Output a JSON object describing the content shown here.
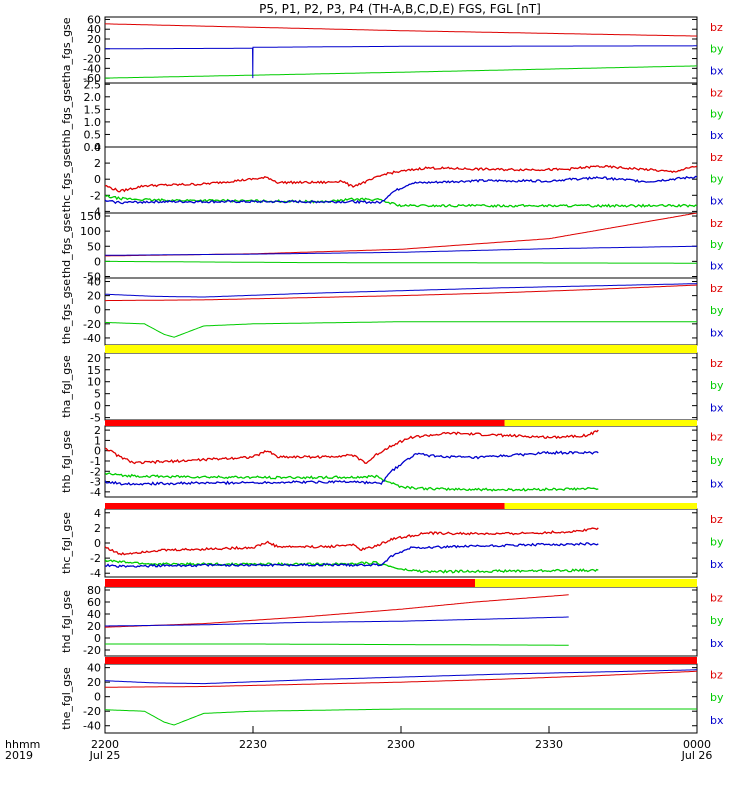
{
  "title": "P5, P1, P2, P3, P4 (TH-A,B,C,D,E) FGS, FGL [nT]",
  "time_axis": {
    "label_row1": "hhmm",
    "label_row2": "2019",
    "ticks": [
      {
        "t": 0,
        "top": "2200",
        "bottom": "Jul 25"
      },
      {
        "t": 30,
        "top": "2230",
        "bottom": ""
      },
      {
        "t": 60,
        "top": "2300",
        "bottom": ""
      },
      {
        "t": 90,
        "top": "2330",
        "bottom": ""
      },
      {
        "t": 120,
        "top": "0000",
        "bottom": "Jul 26"
      }
    ],
    "range_minutes": [
      0,
      120
    ]
  },
  "legend": {
    "bz": {
      "label": "bz",
      "color": "#dd0000"
    },
    "by": {
      "label": "by",
      "color": "#00cc00"
    },
    "bx": {
      "label": "bx",
      "color": "#0000cc"
    }
  },
  "chart_data": [
    {
      "type": "line",
      "ylabel": "tha_fgs_gse",
      "yticks": [
        "60",
        "40",
        "20",
        "0",
        "-20",
        "-40",
        "-60"
      ],
      "ylim": [
        -70,
        65
      ],
      "series": [
        {
          "name": "bz",
          "points": [
            [
              0,
              51
            ],
            [
              60,
              37
            ],
            [
              120,
              26
            ]
          ]
        },
        {
          "name": "by",
          "points": [
            [
              0,
              -60
            ],
            [
              60,
              -48
            ],
            [
              120,
              -35
            ]
          ]
        },
        {
          "name": "bx",
          "points": [
            [
              0,
              0
            ],
            [
              29.9,
              1
            ],
            [
              29.95,
              -60
            ],
            [
              30,
              3
            ],
            [
              60,
              5
            ],
            [
              120,
              6
            ]
          ]
        }
      ]
    },
    {
      "type": "line",
      "ylabel": "thb_fgs_gse",
      "yticks": [
        "2.5",
        "2.0",
        "1.5",
        "1.0",
        "0.5",
        "0.0"
      ],
      "ylim": [
        0,
        2.55
      ],
      "series": []
    },
    {
      "type": "line",
      "ylabel": "thc_fgs_gse",
      "yticks": [
        "4",
        "2",
        "0",
        "-2",
        "-4"
      ],
      "ylim": [
        -4.2,
        4
      ],
      "series": [
        {
          "name": "bz",
          "points": [
            [
              0,
              -0.8
            ],
            [
              3,
              -1.5
            ],
            [
              8,
              -0.8
            ],
            [
              20,
              -0.6
            ],
            [
              33,
              0.2
            ],
            [
              35,
              -0.4
            ],
            [
              45,
              -0.4
            ],
            [
              48,
              -0.2
            ],
            [
              50,
              -0.9
            ],
            [
              53,
              -0.3
            ],
            [
              57,
              0.7
            ],
            [
              65,
              1.4
            ],
            [
              80,
              1.2
            ],
            [
              93,
              1.2
            ],
            [
              100,
              1.6
            ],
            [
              110,
              1.2
            ],
            [
              115,
              0.9
            ],
            [
              120,
              1.6
            ]
          ]
        },
        {
          "name": "by",
          "points": [
            [
              0,
              -2.1
            ],
            [
              3,
              -2.4
            ],
            [
              10,
              -2.6
            ],
            [
              30,
              -2.7
            ],
            [
              45,
              -2.8
            ],
            [
              50,
              -2.5
            ],
            [
              55,
              -2.5
            ],
            [
              60,
              -3.3
            ],
            [
              65,
              -3.3
            ],
            [
              120,
              -3.3
            ]
          ]
        },
        {
          "name": "bx",
          "points": [
            [
              0,
              -2.7
            ],
            [
              3,
              -2.9
            ],
            [
              10,
              -2.8
            ],
            [
              30,
              -2.8
            ],
            [
              45,
              -2.8
            ],
            [
              50,
              -2.8
            ],
            [
              56,
              -2.9
            ],
            [
              58,
              -1.7
            ],
            [
              62,
              -0.5
            ],
            [
              75,
              -0.2
            ],
            [
              90,
              -0.2
            ],
            [
              100,
              0.2
            ],
            [
              110,
              -0.3
            ],
            [
              120,
              0.3
            ]
          ]
        }
      ]
    },
    {
      "type": "line",
      "ylabel": "thd_fgs_gse",
      "yticks": [
        "150",
        "100",
        "50",
        "0",
        "-50"
      ],
      "ylim": [
        -55,
        160
      ],
      "series": [
        {
          "name": "bz",
          "points": [
            [
              0,
              18
            ],
            [
              30,
              25
            ],
            [
              60,
              40
            ],
            [
              90,
              75
            ],
            [
              120,
              160
            ]
          ]
        },
        {
          "name": "by",
          "points": [
            [
              0,
              0
            ],
            [
              20,
              -2
            ],
            [
              40,
              -4
            ],
            [
              120,
              -6
            ]
          ]
        },
        {
          "name": "bx",
          "points": [
            [
              0,
              20
            ],
            [
              30,
              24
            ],
            [
              60,
              30
            ],
            [
              90,
              42
            ],
            [
              120,
              50
            ]
          ]
        }
      ]
    },
    {
      "type": "line",
      "ylabel": "the_fgs_gse",
      "yticks": [
        "40",
        "20",
        "0",
        "-20",
        "-40"
      ],
      "ylim": [
        -50,
        45
      ],
      "series": [
        {
          "name": "bz",
          "points": [
            [
              0,
              13
            ],
            [
              20,
              14
            ],
            [
              40,
              17
            ],
            [
              60,
              20
            ],
            [
              80,
              24
            ],
            [
              100,
              29
            ],
            [
              120,
              35
            ]
          ]
        },
        {
          "name": "by",
          "points": [
            [
              0,
              -18
            ],
            [
              8,
              -20
            ],
            [
              12,
              -35
            ],
            [
              14,
              -39
            ],
            [
              20,
              -23
            ],
            [
              30,
              -20
            ],
            [
              60,
              -17
            ],
            [
              120,
              -17
            ]
          ]
        },
        {
          "name": "bx",
          "points": [
            [
              0,
              22
            ],
            [
              10,
              19
            ],
            [
              20,
              18
            ],
            [
              40,
              23
            ],
            [
              60,
              27
            ],
            [
              80,
              31
            ],
            [
              100,
              34
            ],
            [
              120,
              37
            ]
          ]
        }
      ]
    },
    {
      "type": "line",
      "ylabel": "tha_fgl_gse",
      "yticks": [
        "20",
        "15",
        "10",
        "5",
        "0",
        "-5"
      ],
      "ylim": [
        -6,
        22
      ],
      "series": []
    },
    {
      "type": "line",
      "ylabel": "thb_fgl_gse",
      "yticks": [
        "2",
        "1",
        "0",
        "-1",
        "-2",
        "-3",
        "-4"
      ],
      "ylim": [
        -4.5,
        2.4
      ],
      "series": [
        {
          "name": "bz",
          "points": [
            [
              0,
              0.3
            ],
            [
              3,
              -0.6
            ],
            [
              6,
              -1.2
            ],
            [
              15,
              -1.0
            ],
            [
              30,
              -0.6
            ],
            [
              33,
              0.0
            ],
            [
              35,
              -0.6
            ],
            [
              45,
              -0.6
            ],
            [
              50,
              -0.4
            ],
            [
              53,
              -1.2
            ],
            [
              55,
              -0.4
            ],
            [
              58,
              0.5
            ],
            [
              62,
              1.3
            ],
            [
              70,
              1.7
            ],
            [
              80,
              1.5
            ],
            [
              90,
              1.3
            ],
            [
              98,
              1.5
            ],
            [
              100,
              2.0
            ]
          ]
        },
        {
          "name": "by",
          "points": [
            [
              0,
              -2.2
            ],
            [
              3,
              -2.4
            ],
            [
              10,
              -2.5
            ],
            [
              30,
              -2.6
            ],
            [
              50,
              -2.6
            ],
            [
              55,
              -2.5
            ],
            [
              60,
              -3.5
            ],
            [
              65,
              -3.7
            ],
            [
              80,
              -3.8
            ],
            [
              100,
              -3.7
            ]
          ]
        },
        {
          "name": "bx",
          "points": [
            [
              0,
              -3.0
            ],
            [
              3,
              -3.2
            ],
            [
              10,
              -3.2
            ],
            [
              30,
              -3.1
            ],
            [
              50,
              -3.0
            ],
            [
              56,
              -3.2
            ],
            [
              58,
              -2.0
            ],
            [
              63,
              -0.3
            ],
            [
              66,
              -0.5
            ],
            [
              75,
              -0.7
            ],
            [
              90,
              -0.2
            ],
            [
              100,
              -0.2
            ]
          ]
        }
      ]
    },
    {
      "type": "line",
      "ylabel": "thc_fgl_gse",
      "yticks": [
        "4",
        "2",
        "0",
        "-2",
        "-4"
      ],
      "ylim": [
        -4.5,
        4.5
      ],
      "series": [
        {
          "name": "bz",
          "points": [
            [
              0,
              -0.5
            ],
            [
              3,
              -1.5
            ],
            [
              10,
              -1.0
            ],
            [
              30,
              -0.6
            ],
            [
              33,
              0.1
            ],
            [
              35,
              -0.5
            ],
            [
              45,
              -0.5
            ],
            [
              50,
              -0.2
            ],
            [
              52,
              -0.9
            ],
            [
              55,
              -0.4
            ],
            [
              58,
              0.5
            ],
            [
              65,
              1.3
            ],
            [
              80,
              1.2
            ],
            [
              95,
              1.5
            ],
            [
              100,
              2.0
            ]
          ]
        },
        {
          "name": "by",
          "points": [
            [
              0,
              -2.3
            ],
            [
              3,
              -2.5
            ],
            [
              10,
              -2.8
            ],
            [
              30,
              -2.8
            ],
            [
              45,
              -2.8
            ],
            [
              55,
              -2.6
            ],
            [
              60,
              -3.5
            ],
            [
              65,
              -3.8
            ],
            [
              100,
              -3.6
            ]
          ]
        },
        {
          "name": "bx",
          "points": [
            [
              0,
              -2.9
            ],
            [
              3,
              -3.1
            ],
            [
              10,
              -3.0
            ],
            [
              30,
              -2.9
            ],
            [
              45,
              -2.9
            ],
            [
              56,
              -2.9
            ],
            [
              58,
              -1.8
            ],
            [
              62,
              -0.6
            ],
            [
              70,
              -0.5
            ],
            [
              90,
              -0.2
            ],
            [
              100,
              -0.1
            ]
          ]
        }
      ]
    },
    {
      "type": "line",
      "ylabel": "thd_fgl_gse",
      "yticks": [
        "80",
        "60",
        "40",
        "20",
        "0",
        "-20"
      ],
      "ylim": [
        -30,
        85
      ],
      "series": [
        {
          "name": "bz",
          "points": [
            [
              0,
              18
            ],
            [
              20,
              24
            ],
            [
              40,
              35
            ],
            [
              60,
              48
            ],
            [
              75,
              60
            ],
            [
              94,
              72
            ]
          ]
        },
        {
          "name": "by",
          "points": [
            [
              0,
              -10
            ],
            [
              30,
              -10
            ],
            [
              60,
              -11
            ],
            [
              94,
              -12
            ]
          ]
        },
        {
          "name": "bx",
          "points": [
            [
              0,
              20
            ],
            [
              20,
              22
            ],
            [
              40,
              26
            ],
            [
              60,
              28
            ],
            [
              80,
              32
            ],
            [
              94,
              35
            ]
          ]
        }
      ]
    },
    {
      "type": "line",
      "ylabel": "the_fgl_gse",
      "yticks": [
        "40",
        "20",
        "0",
        "-20",
        "-40"
      ],
      "ylim": [
        -50,
        45
      ],
      "series": [
        {
          "name": "bz",
          "points": [
            [
              0,
              13
            ],
            [
              20,
              14
            ],
            [
              40,
              17
            ],
            [
              60,
              20
            ],
            [
              80,
              24
            ],
            [
              100,
              29
            ],
            [
              120,
              35
            ]
          ]
        },
        {
          "name": "by",
          "points": [
            [
              0,
              -18
            ],
            [
              8,
              -20
            ],
            [
              12,
              -35
            ],
            [
              14,
              -39
            ],
            [
              20,
              -23
            ],
            [
              30,
              -20
            ],
            [
              60,
              -17
            ],
            [
              120,
              -17
            ]
          ]
        },
        {
          "name": "bx",
          "points": [
            [
              0,
              22
            ],
            [
              10,
              19
            ],
            [
              20,
              18
            ],
            [
              40,
              23
            ],
            [
              60,
              27
            ],
            [
              80,
              31
            ],
            [
              100,
              34
            ],
            [
              120,
              37
            ]
          ]
        }
      ]
    }
  ],
  "status_bars": [
    {
      "segments": [
        {
          "from": 0,
          "to": 120,
          "color": "#ffff00"
        }
      ]
    },
    {
      "segments": [
        {
          "from": 0,
          "to": 81,
          "color": "#ff0000"
        },
        {
          "from": 81,
          "to": 120,
          "color": "#ffff00"
        }
      ]
    },
    {
      "segments": [
        {
          "from": 0,
          "to": 81,
          "color": "#ff0000"
        },
        {
          "from": 81,
          "to": 120,
          "color": "#ffff00"
        }
      ]
    },
    {
      "segments": [
        {
          "from": 0,
          "to": 75,
          "color": "#ff0000"
        },
        {
          "from": 75,
          "to": 120,
          "color": "#ffff00"
        }
      ]
    },
    {
      "segments": [
        {
          "from": 0,
          "to": 120,
          "color": "#ff0000"
        }
      ]
    }
  ]
}
